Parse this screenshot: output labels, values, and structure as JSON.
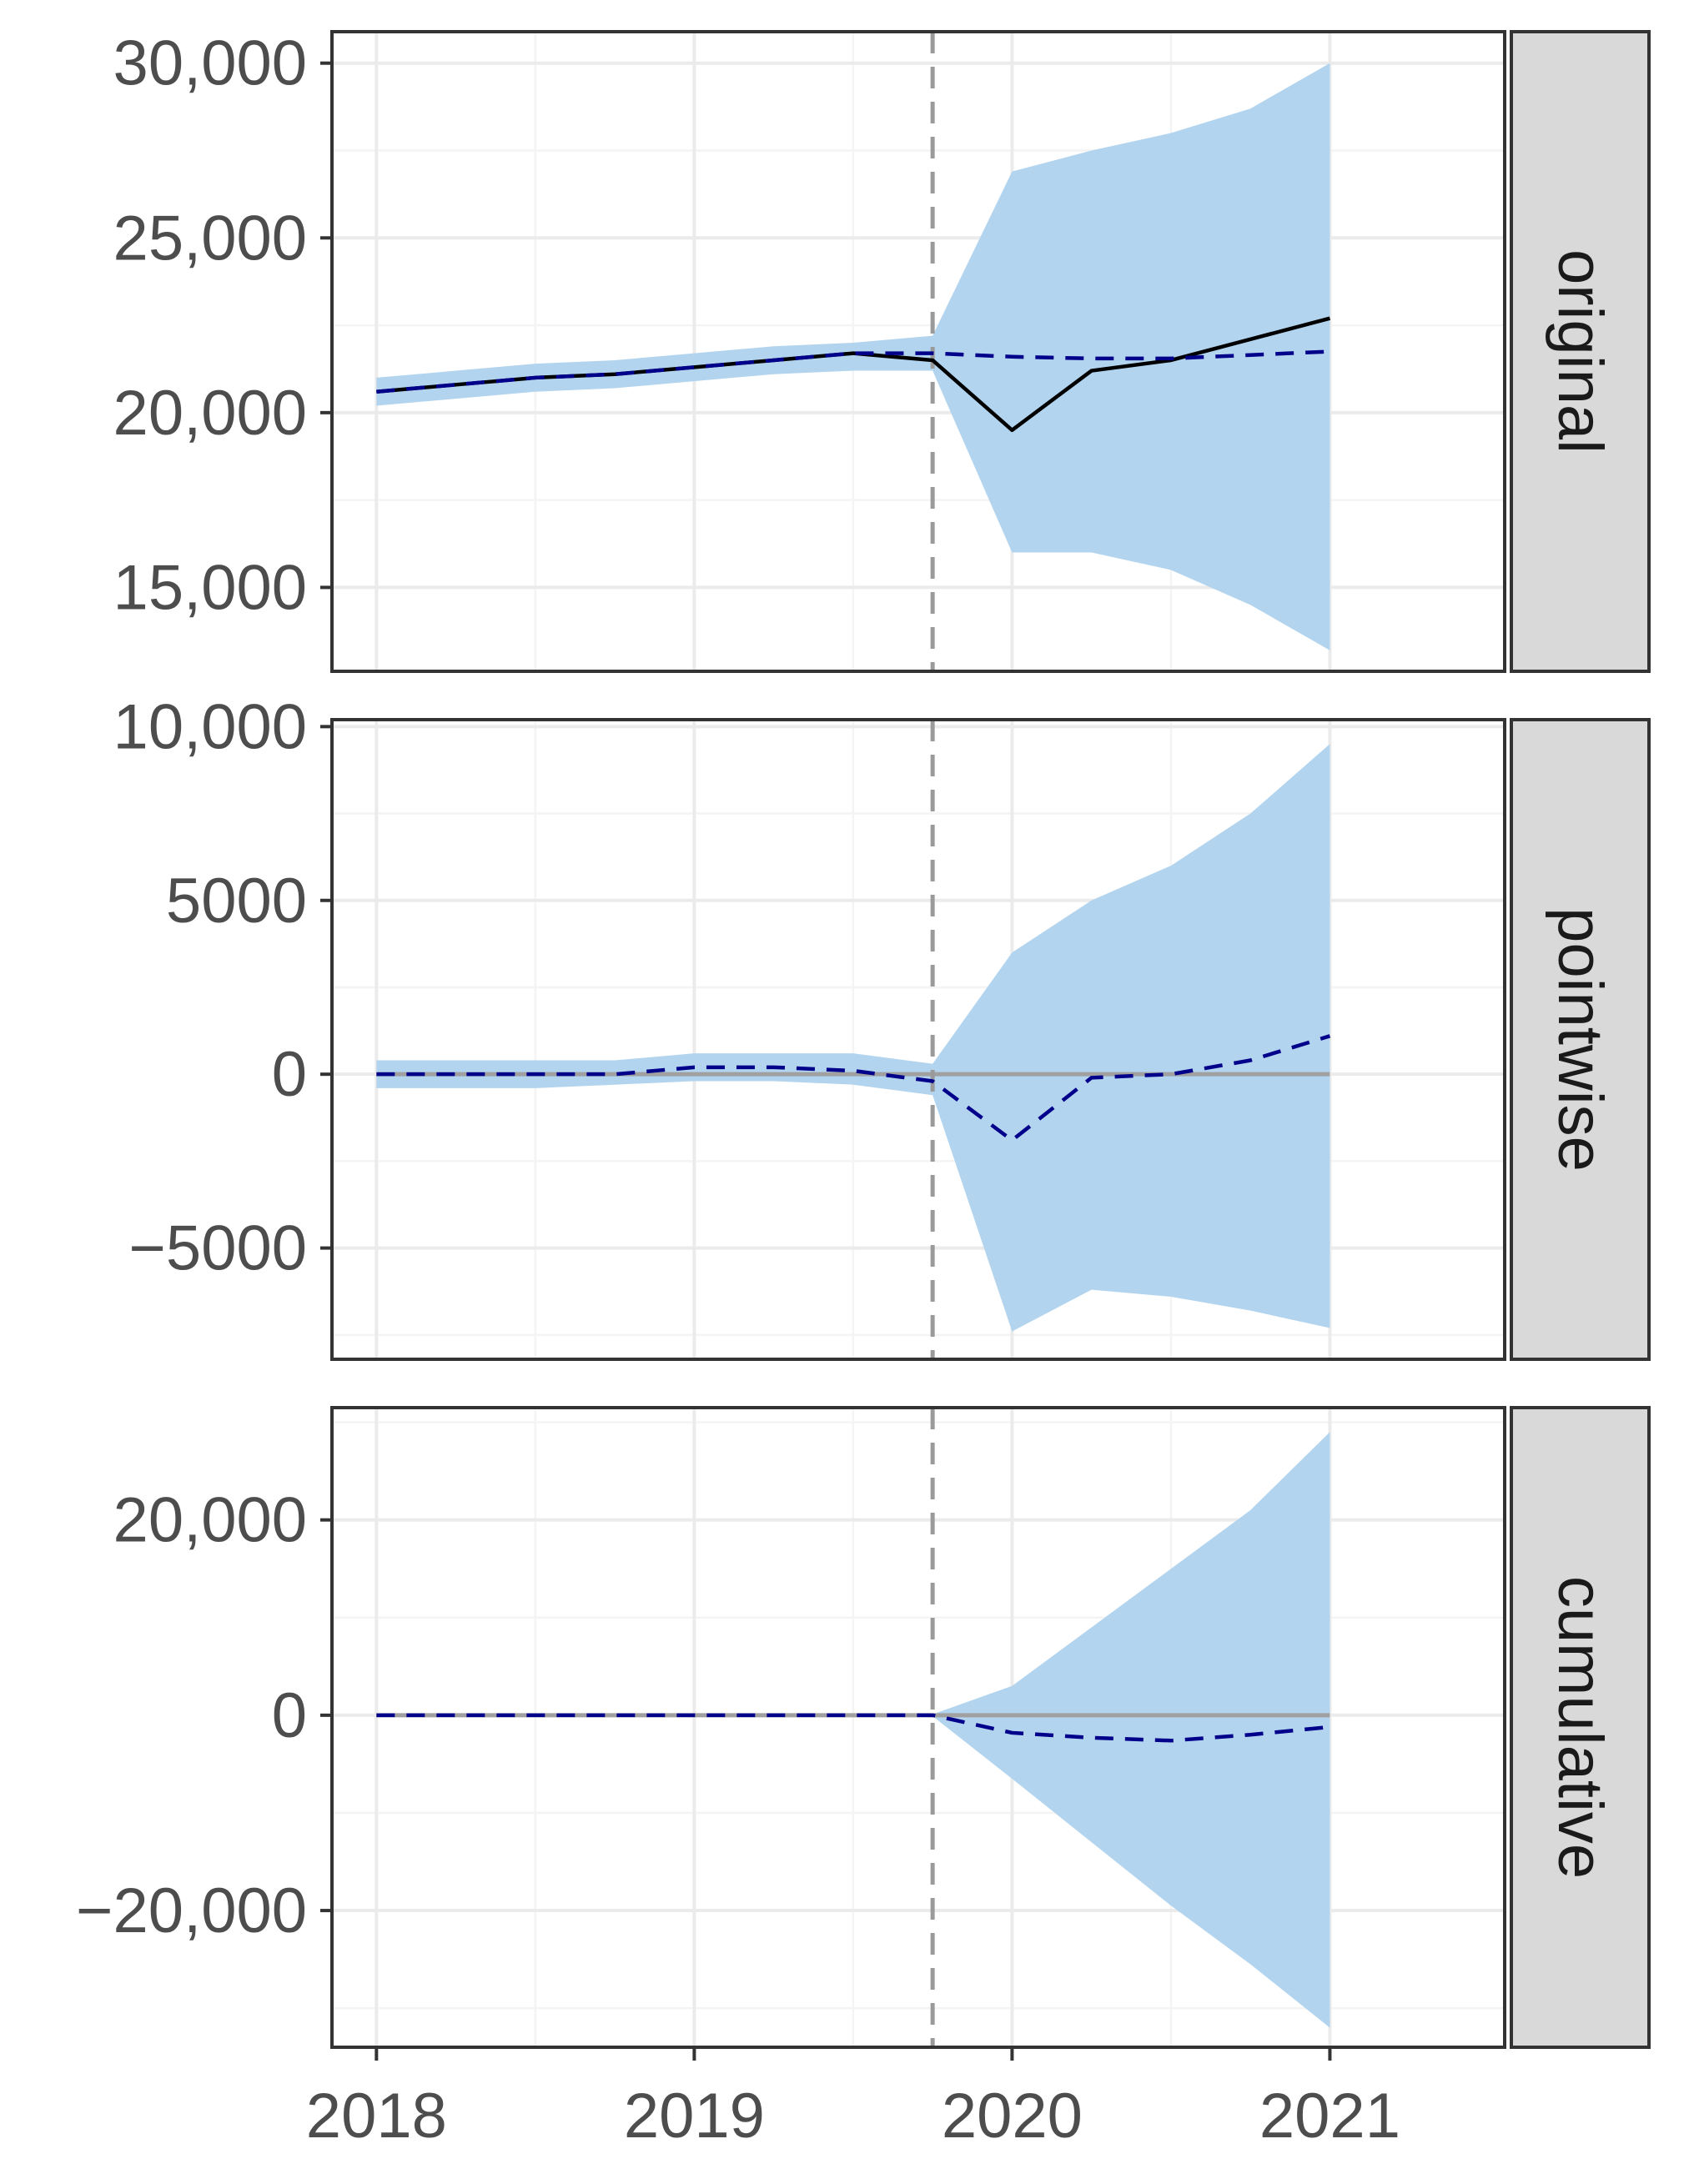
{
  "chart_data": {
    "type": "area",
    "facets": [
      "original",
      "pointwise",
      "cumulative"
    ],
    "x_ticks": [
      "2018",
      "2019",
      "2020",
      "2021"
    ],
    "xlim": [
      2017.86,
      2021.55
    ],
    "intervention_x": 2019.75,
    "grid": true,
    "colors": {
      "band": "#b2d4ee",
      "observed": "#000000",
      "prediction": "#00008b",
      "zero_line": "#a0a0a0",
      "vline": "#9a9a9a",
      "grid_major": "#ebebeb",
      "grid_minor": "#f4f4f4",
      "strip_bg": "#d9d9d9",
      "panel_border": "#333333"
    },
    "panels": [
      {
        "strip": "original",
        "ylim": [
          12600,
          30900
        ],
        "y_ticks": [
          15000,
          20000,
          25000,
          30000
        ],
        "y_tick_labels": [
          "15,000",
          "20,000",
          "25,000",
          "30,000"
        ],
        "x": [
          2018,
          2018.25,
          2018.5,
          2018.75,
          2019,
          2019.25,
          2019.5,
          2019.75,
          2020,
          2020.25,
          2020.5,
          2020.75,
          2021
        ],
        "observed": [
          20600,
          20800,
          21000,
          21100,
          21300,
          21500,
          21700,
          21500,
          19500,
          21200,
          21500,
          22100,
          22700
        ],
        "predicted": [
          20600,
          20800,
          21000,
          21100,
          21300,
          21500,
          21700,
          21700,
          21600,
          21550,
          21550,
          21650,
          21750
        ],
        "lower": [
          20200,
          20400,
          20600,
          20700,
          20900,
          21100,
          21200,
          21200,
          16000,
          16000,
          15500,
          14500,
          13200
        ],
        "upper": [
          21000,
          21200,
          21400,
          21500,
          21700,
          21900,
          22000,
          22200,
          26900,
          27500,
          28000,
          28700,
          30000
        ]
      },
      {
        "strip": "pointwise",
        "ylim": [
          -8200,
          10200
        ],
        "y_ticks": [
          -5000,
          0,
          5000,
          10000
        ],
        "y_tick_labels": [
          "−5000",
          "0",
          "5000",
          "10,000"
        ],
        "x": [
          2018,
          2018.25,
          2018.5,
          2018.75,
          2019,
          2019.25,
          2019.5,
          2019.75,
          2020,
          2020.25,
          2020.5,
          2020.75,
          2021
        ],
        "predicted": [
          0,
          0,
          0,
          0,
          200,
          200,
          100,
          -200,
          -1900,
          -100,
          0,
          400,
          1100
        ],
        "lower": [
          -400,
          -400,
          -400,
          -300,
          -200,
          -200,
          -300,
          -600,
          -7400,
          -6200,
          -6400,
          -6800,
          -7300
        ],
        "upper": [
          400,
          400,
          400,
          400,
          600,
          600,
          600,
          300,
          3500,
          5000,
          6000,
          7500,
          9500
        ],
        "zero_line": 0
      },
      {
        "strip": "cumulative",
        "ylim": [
          -34000,
          31500
        ],
        "y_ticks": [
          -20000,
          0,
          20000
        ],
        "y_tick_labels": [
          "−20,000",
          "0",
          "20,000"
        ],
        "x": [
          2018,
          2018.25,
          2018.5,
          2018.75,
          2019,
          2019.25,
          2019.5,
          2019.75,
          2020,
          2020.25,
          2020.5,
          2020.75,
          2021
        ],
        "predicted": [
          0,
          0,
          0,
          0,
          0,
          0,
          0,
          0,
          -1800,
          -2300,
          -2600,
          -2000,
          -1200
        ],
        "lower": [
          0,
          0,
          0,
          0,
          0,
          0,
          0,
          -100,
          -6500,
          -13000,
          -19500,
          -25500,
          -32000
        ],
        "upper": [
          0,
          0,
          0,
          0,
          0,
          0,
          0,
          100,
          3000,
          9000,
          15000,
          21000,
          29000
        ],
        "zero_line": 0
      }
    ]
  }
}
